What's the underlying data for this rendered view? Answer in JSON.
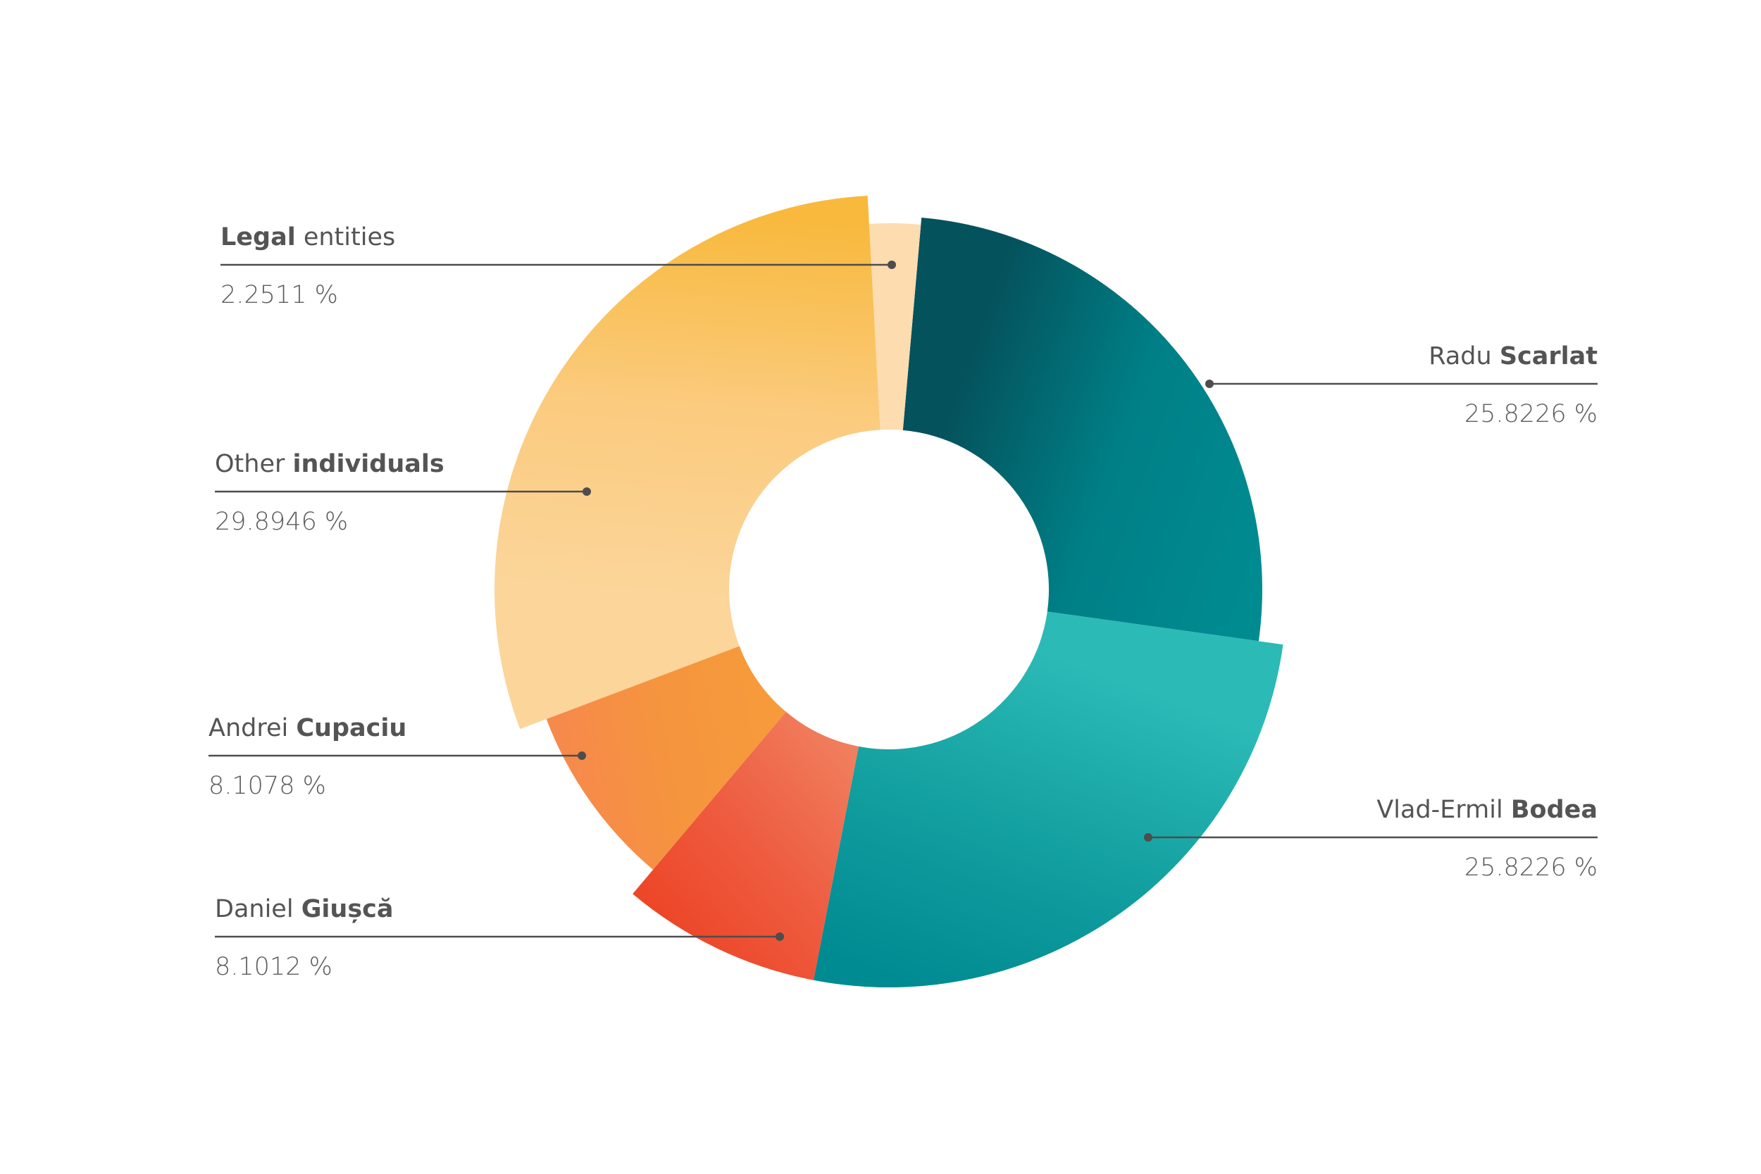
{
  "chart_data": {
    "type": "pie",
    "variant": "donut",
    "title": "",
    "series": [
      {
        "name": "Radu Scarlat",
        "label_regular": "Radu ",
        "label_bold": "Scarlat",
        "bold_first": false,
        "value": 25.8226,
        "value_label": "25.8226 %",
        "label_side": "right",
        "gradient": [
          "#04525c",
          "#007f86",
          "#008b91"
        ]
      },
      {
        "name": "Vlad-Ermil Bodea",
        "label_regular": "Vlad-Ermil ",
        "label_bold": "Bodea",
        "bold_first": false,
        "value": 25.8226,
        "value_label": "25.8226 %",
        "label_side": "right",
        "gradient": [
          "#2bbab6",
          "#13a0a0",
          "#008a92"
        ]
      },
      {
        "name": "Daniel Giușcă",
        "label_regular": "Daniel ",
        "label_bold": "Giușcă",
        "bold_first": false,
        "value": 8.1012,
        "value_label": "8.1012 %",
        "label_side": "left",
        "gradient": [
          "#f07f5e",
          "#ee5e42",
          "#ed4628"
        ]
      },
      {
        "name": "Andrei Cupaciu",
        "label_regular": "Andrei ",
        "label_bold": "Cupaciu",
        "bold_first": false,
        "value": 8.1078,
        "value_label": "8.1078 %",
        "label_side": "left",
        "gradient": [
          "#f69b3b",
          "#f5953e",
          "#f6894c"
        ]
      },
      {
        "name": "Other individuals",
        "label_regular": "Other ",
        "label_bold": "individuals",
        "bold_first": false,
        "value": 29.8946,
        "value_label": "29.8946 %",
        "label_side": "left",
        "gradient": [
          "#fbd59a",
          "#fbcb7e",
          "#f8b93d"
        ]
      },
      {
        "name": "Legal entities",
        "label_regular": " entities",
        "label_bold": "Legal",
        "bold_first": true,
        "value": 2.2511,
        "value_label": "2.2511 %",
        "label_side": "left",
        "gradient": [
          "#fddcb0",
          "#fddcb0",
          "#fddcb0"
        ]
      }
    ],
    "legend": "none",
    "grid": false
  }
}
